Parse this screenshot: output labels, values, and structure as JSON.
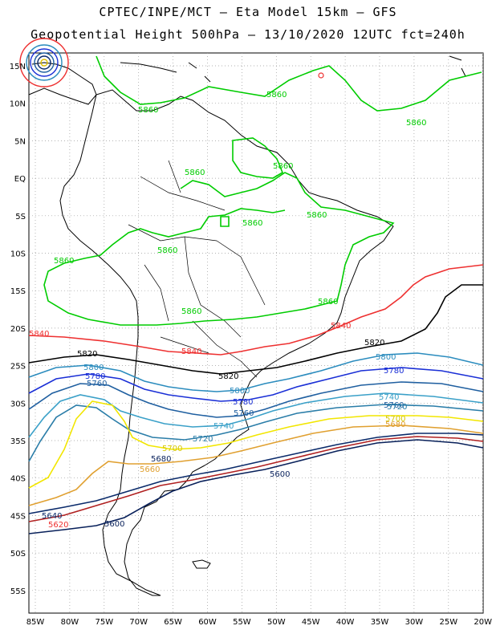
{
  "header": {
    "line1": "CPTEC/INPE/MCT –  Eta Model 15km – GFS",
    "line2": "Geopotential Height 500hPa – 13/10/2020 12UTC fct=240h"
  },
  "axes": {
    "lat_labels": [
      "15N",
      "10N",
      "5N",
      "EQ",
      "5S",
      "10S",
      "15S",
      "20S",
      "25S",
      "30S",
      "35S",
      "40S",
      "45S",
      "50S",
      "55S"
    ],
    "lon_labels": [
      "85W",
      "80W",
      "75W",
      "70W",
      "65W",
      "60W",
      "55W",
      "50W",
      "45W",
      "40W",
      "35W",
      "30W",
      "25W",
      "20W"
    ]
  },
  "contours": [
    {
      "value": "5860",
      "color": "#00cc00"
    },
    {
      "value": "5840",
      "color": "#ee3030"
    },
    {
      "value": "5820",
      "color": "#000000"
    },
    {
      "value": "5800",
      "color": "#2b8cbe"
    },
    {
      "value": "5780",
      "color": "#1a2fd6"
    },
    {
      "value": "5760",
      "color": "#1f5fa0"
    },
    {
      "value": "5740",
      "color": "#3aa0c8"
    },
    {
      "value": "5720",
      "color": "#2a7da8"
    },
    {
      "value": "5700",
      "color": "#f2e600"
    },
    {
      "value": "5680",
      "color": "#e0a030"
    },
    {
      "value": "5660",
      "color": "#b02020"
    },
    {
      "value": "5640",
      "color": "#0a2a6a"
    },
    {
      "value": "5620",
      "color": "#0a1a4a"
    },
    {
      "value": "5600",
      "color": "#08205a"
    }
  ],
  "labels": {
    "l5860a": "5860",
    "l5860b": "5860",
    "l5860c": "5860",
    "l5860d": "5860",
    "l5860e": "5860",
    "l5860f": "5860",
    "l5860g": "5860",
    "l5860h": "5860",
    "l5860i": "5860",
    "l5860j": "5860",
    "l5840a": "5840",
    "l5840b": "5840",
    "l5840c": "5840",
    "l5820a": "5820",
    "l5820b": "5820",
    "l5820c": "5820",
    "l5800a": "5800",
    "l5800b": "5800",
    "l5800c": "5800",
    "l5780a": "5780",
    "l5780b": "5780",
    "l5780c": "5780",
    "l5760a": "5760",
    "l5760b": "5760",
    "l5760c": "5760",
    "l5740a": "5740",
    "l5740b": "5740",
    "l5720a": "5720",
    "l5720b": "5720",
    "l5700a": "5700",
    "l5700b": "5700",
    "l5680a": "5680",
    "l5680b": "5680",
    "l5660a": "5660",
    "l5640a": "5640",
    "l5620a": "5620",
    "l5600a": "5600",
    "l5600b": "5600"
  }
}
